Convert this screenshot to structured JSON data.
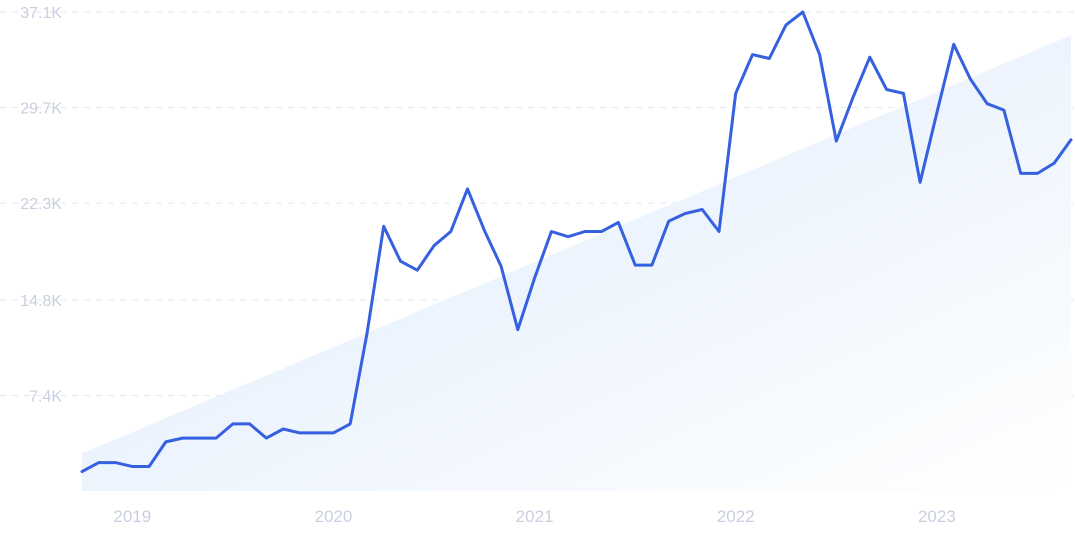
{
  "chart_data": {
    "type": "line",
    "title": "",
    "xlabel": "",
    "ylabel": "",
    "ylim": [
      0,
      37100
    ],
    "xlim": [
      "2018-10",
      "2023-09"
    ],
    "grid": true,
    "y_ticks": [
      {
        "value": 7400,
        "label": "7.4K"
      },
      {
        "value": 14800,
        "label": "14.8K"
      },
      {
        "value": 22300,
        "label": "22.3K"
      },
      {
        "value": 29700,
        "label": "29.7K"
      },
      {
        "value": 37100,
        "label": "37.1K"
      }
    ],
    "x_ticks": [
      {
        "value": "2019-01",
        "label": "2019"
      },
      {
        "value": "2020-01",
        "label": "2020"
      },
      {
        "value": "2021-01",
        "label": "2021"
      },
      {
        "value": "2022-01",
        "label": "2022"
      },
      {
        "value": "2023-01",
        "label": "2023"
      }
    ],
    "trend": {
      "start": {
        "x": "2018-10",
        "y": 2900
      },
      "end": {
        "x": "2023-09",
        "y": 35300
      }
    },
    "series": [
      {
        "line_color": "#3560e0",
        "fill_color": "#e3eefc",
        "x": [
          "2018-10",
          "2018-11",
          "2018-12",
          "2019-01",
          "2019-02",
          "2019-03",
          "2019-04",
          "2019-05",
          "2019-06",
          "2019-07",
          "2019-08",
          "2019-09",
          "2019-10",
          "2019-11",
          "2019-12",
          "2020-01",
          "2020-02",
          "2020-03",
          "2020-04",
          "2020-05",
          "2020-06",
          "2020-07",
          "2020-08",
          "2020-09",
          "2020-10",
          "2020-11",
          "2020-12",
          "2021-01",
          "2021-02",
          "2021-03",
          "2021-04",
          "2021-05",
          "2021-06",
          "2021-07",
          "2021-08",
          "2021-09",
          "2021-10",
          "2021-11",
          "2021-12",
          "2022-01",
          "2022-02",
          "2022-03",
          "2022-04",
          "2022-05",
          "2022-06",
          "2022-07",
          "2022-08",
          "2022-09",
          "2022-10",
          "2022-11",
          "2022-12",
          "2023-01",
          "2023-02",
          "2023-03",
          "2023-04",
          "2023-05",
          "2023-06",
          "2023-07",
          "2023-08",
          "2023-09"
        ],
        "y": [
          1500,
          2200,
          2200,
          1900,
          1900,
          3800,
          4100,
          4100,
          4100,
          5200,
          5200,
          4100,
          4800,
          4500,
          4500,
          4500,
          5200,
          12200,
          20500,
          17800,
          17100,
          19000,
          20100,
          23400,
          20200,
          17400,
          12500,
          16500,
          20100,
          19700,
          20100,
          20100,
          20800,
          17500,
          17500,
          20900,
          21500,
          21800,
          20100,
          30800,
          33800,
          33500,
          36100,
          37100,
          33800,
          27100,
          30500,
          33600,
          31100,
          30800,
          23900,
          29300,
          34600,
          31900,
          30000,
          29500,
          24600,
          24600,
          25400,
          27200
        ]
      }
    ]
  }
}
